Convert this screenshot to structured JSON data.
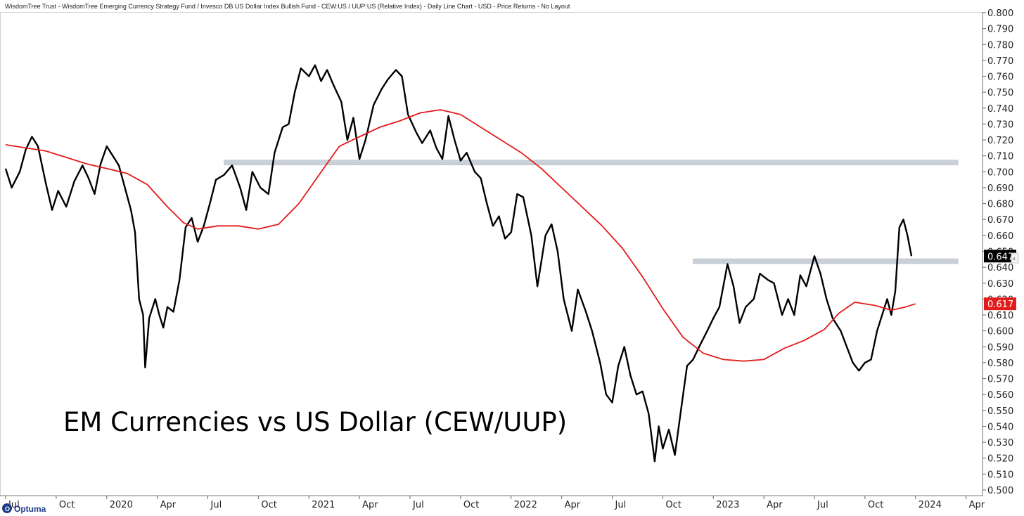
{
  "header": {
    "title": "WisdomTree Trust - WisdomTree Emerging Currency Strategy Fund / Invesco DB US Dollar Index Bullish Fund - CEW:US / UUP:US (Relative Index) - Daily Line Chart - USD - Price Returns - No Layout"
  },
  "annotation": "EM Currencies vs US Dollar (CEW/UUP)",
  "logo_text": "Optuma",
  "colors": {
    "price": "#000000",
    "moving_average": "#e31b1b",
    "zone": "#c9d0d8",
    "price_tag": "#000000",
    "ma_tag": "#e31b1b"
  },
  "chart_data": {
    "type": "line",
    "x_unit": "year (decimal)",
    "xlim": [
      2019.5,
      2024.3
    ],
    "ylim": [
      0.5,
      0.8
    ],
    "grid": false,
    "yticks": [
      "0.800",
      "0.790",
      "0.780",
      "0.770",
      "0.760",
      "0.750",
      "0.740",
      "0.730",
      "0.720",
      "0.710",
      "0.700",
      "0.690",
      "0.680",
      "0.670",
      "0.660",
      "0.650",
      "0.640",
      "0.630",
      "0.620",
      "0.610",
      "0.600",
      "0.590",
      "0.580",
      "0.570",
      "0.560",
      "0.550",
      "0.540",
      "0.530",
      "0.520",
      "0.510",
      "0.500"
    ],
    "xticks": [
      {
        "label": "Jul",
        "x": 2019.5
      },
      {
        "label": "Oct",
        "x": 2019.75
      },
      {
        "label": "2020",
        "x": 2020.0
      },
      {
        "label": "Apr",
        "x": 2020.25
      },
      {
        "label": "Jul",
        "x": 2020.5
      },
      {
        "label": "Oct",
        "x": 2020.75
      },
      {
        "label": "2021",
        "x": 2021.0
      },
      {
        "label": "Apr",
        "x": 2021.25
      },
      {
        "label": "Jul",
        "x": 2021.5
      },
      {
        "label": "Oct",
        "x": 2021.75
      },
      {
        "label": "2022",
        "x": 2022.0
      },
      {
        "label": "Apr",
        "x": 2022.25
      },
      {
        "label": "Jul",
        "x": 2022.5
      },
      {
        "label": "Oct",
        "x": 2022.75
      },
      {
        "label": "2023",
        "x": 2023.0
      },
      {
        "label": "Apr",
        "x": 2023.25
      },
      {
        "label": "Jul",
        "x": 2023.5
      },
      {
        "label": "Oct",
        "x": 2023.75
      },
      {
        "label": "2024",
        "x": 2024.0
      },
      {
        "label": "Apr",
        "x": 2024.25
      }
    ],
    "series": [
      {
        "role": "price",
        "points": [
          [
            2019.5,
            0.702
          ],
          [
            2019.53,
            0.69
          ],
          [
            2019.57,
            0.7
          ],
          [
            2019.6,
            0.714
          ],
          [
            2019.63,
            0.722
          ],
          [
            2019.66,
            0.716
          ],
          [
            2019.7,
            0.692
          ],
          [
            2019.73,
            0.676
          ],
          [
            2019.76,
            0.688
          ],
          [
            2019.8,
            0.678
          ],
          [
            2019.84,
            0.694
          ],
          [
            2019.88,
            0.704
          ],
          [
            2019.91,
            0.696
          ],
          [
            2019.94,
            0.686
          ],
          [
            2019.97,
            0.705
          ],
          [
            2020.0,
            0.716
          ],
          [
            2020.03,
            0.71
          ],
          [
            2020.06,
            0.704
          ],
          [
            2020.09,
            0.69
          ],
          [
            2020.12,
            0.676
          ],
          [
            2020.14,
            0.662
          ],
          [
            2020.16,
            0.62
          ],
          [
            2020.18,
            0.61
          ],
          [
            2020.19,
            0.577
          ],
          [
            2020.21,
            0.608
          ],
          [
            2020.24,
            0.62
          ],
          [
            2020.26,
            0.61
          ],
          [
            2020.28,
            0.602
          ],
          [
            2020.3,
            0.615
          ],
          [
            2020.33,
            0.612
          ],
          [
            2020.36,
            0.632
          ],
          [
            2020.39,
            0.665
          ],
          [
            2020.42,
            0.671
          ],
          [
            2020.45,
            0.656
          ],
          [
            2020.48,
            0.666
          ],
          [
            2020.51,
            0.68
          ],
          [
            2020.54,
            0.695
          ],
          [
            2020.58,
            0.698
          ],
          [
            2020.62,
            0.704
          ],
          [
            2020.66,
            0.69
          ],
          [
            2020.69,
            0.676
          ],
          [
            2020.72,
            0.7
          ],
          [
            2020.76,
            0.69
          ],
          [
            2020.8,
            0.686
          ],
          [
            2020.83,
            0.712
          ],
          [
            2020.87,
            0.728
          ],
          [
            2020.9,
            0.73
          ],
          [
            2020.93,
            0.75
          ],
          [
            2020.96,
            0.765
          ],
          [
            2021.0,
            0.76
          ],
          [
            2021.03,
            0.767
          ],
          [
            2021.06,
            0.757
          ],
          [
            2021.09,
            0.764
          ],
          [
            2021.12,
            0.755
          ],
          [
            2021.16,
            0.744
          ],
          [
            2021.19,
            0.72
          ],
          [
            2021.22,
            0.734
          ],
          [
            2021.25,
            0.708
          ],
          [
            2021.28,
            0.72
          ],
          [
            2021.32,
            0.742
          ],
          [
            2021.36,
            0.752
          ],
          [
            2021.39,
            0.758
          ],
          [
            2021.43,
            0.764
          ],
          [
            2021.46,
            0.76
          ],
          [
            2021.49,
            0.736
          ],
          [
            2021.53,
            0.725
          ],
          [
            2021.56,
            0.718
          ],
          [
            2021.6,
            0.726
          ],
          [
            2021.63,
            0.715
          ],
          [
            2021.66,
            0.708
          ],
          [
            2021.69,
            0.735
          ],
          [
            2021.72,
            0.72
          ],
          [
            2021.75,
            0.707
          ],
          [
            2021.78,
            0.712
          ],
          [
            2021.82,
            0.7
          ],
          [
            2021.85,
            0.696
          ],
          [
            2021.88,
            0.68
          ],
          [
            2021.91,
            0.666
          ],
          [
            2021.94,
            0.672
          ],
          [
            2021.97,
            0.658
          ],
          [
            2022.0,
            0.662
          ],
          [
            2022.03,
            0.686
          ],
          [
            2022.06,
            0.684
          ],
          [
            2022.1,
            0.66
          ],
          [
            2022.13,
            0.628
          ],
          [
            2022.17,
            0.66
          ],
          [
            2022.2,
            0.667
          ],
          [
            2022.23,
            0.65
          ],
          [
            2022.26,
            0.62
          ],
          [
            2022.3,
            0.6
          ],
          [
            2022.33,
            0.626
          ],
          [
            2022.37,
            0.612
          ],
          [
            2022.4,
            0.6
          ],
          [
            2022.44,
            0.58
          ],
          [
            2022.47,
            0.56
          ],
          [
            2022.5,
            0.555
          ],
          [
            2022.53,
            0.578
          ],
          [
            2022.56,
            0.59
          ],
          [
            2022.59,
            0.572
          ],
          [
            2022.62,
            0.56
          ],
          [
            2022.65,
            0.562
          ],
          [
            2022.68,
            0.548
          ],
          [
            2022.71,
            0.518
          ],
          [
            2022.73,
            0.54
          ],
          [
            2022.75,
            0.526
          ],
          [
            2022.78,
            0.538
          ],
          [
            2022.81,
            0.522
          ],
          [
            2022.84,
            0.55
          ],
          [
            2022.87,
            0.578
          ],
          [
            2022.9,
            0.582
          ],
          [
            2022.93,
            0.59
          ],
          [
            2022.97,
            0.6
          ],
          [
            2023.0,
            0.608
          ],
          [
            2023.03,
            0.615
          ],
          [
            2023.07,
            0.642
          ],
          [
            2023.1,
            0.628
          ],
          [
            2023.13,
            0.605
          ],
          [
            2023.16,
            0.615
          ],
          [
            2023.2,
            0.62
          ],
          [
            2023.23,
            0.636
          ],
          [
            2023.27,
            0.632
          ],
          [
            2023.3,
            0.63
          ],
          [
            2023.34,
            0.61
          ],
          [
            2023.37,
            0.62
          ],
          [
            2023.4,
            0.61
          ],
          [
            2023.43,
            0.635
          ],
          [
            2023.46,
            0.628
          ],
          [
            2023.5,
            0.647
          ],
          [
            2023.53,
            0.636
          ],
          [
            2023.56,
            0.62
          ],
          [
            2023.59,
            0.608
          ],
          [
            2023.63,
            0.6
          ],
          [
            2023.66,
            0.59
          ],
          [
            2023.69,
            0.58
          ],
          [
            2023.72,
            0.575
          ],
          [
            2023.75,
            0.58
          ],
          [
            2023.78,
            0.582
          ],
          [
            2023.81,
            0.6
          ],
          [
            2023.84,
            0.612
          ],
          [
            2023.86,
            0.62
          ],
          [
            2023.88,
            0.61
          ],
          [
            2023.9,
            0.625
          ],
          [
            2023.92,
            0.665
          ],
          [
            2023.94,
            0.67
          ],
          [
            2023.96,
            0.66
          ],
          [
            2023.98,
            0.647
          ]
        ]
      },
      {
        "role": "moving_average",
        "points": [
          [
            2019.5,
            0.717
          ],
          [
            2019.7,
            0.713
          ],
          [
            2019.9,
            0.705
          ],
          [
            2020.0,
            0.702
          ],
          [
            2020.1,
            0.699
          ],
          [
            2020.2,
            0.692
          ],
          [
            2020.3,
            0.678
          ],
          [
            2020.38,
            0.668
          ],
          [
            2020.45,
            0.664
          ],
          [
            2020.55,
            0.666
          ],
          [
            2020.65,
            0.666
          ],
          [
            2020.75,
            0.664
          ],
          [
            2020.85,
            0.667
          ],
          [
            2020.95,
            0.68
          ],
          [
            2021.05,
            0.698
          ],
          [
            2021.15,
            0.716
          ],
          [
            2021.25,
            0.722
          ],
          [
            2021.35,
            0.728
          ],
          [
            2021.45,
            0.732
          ],
          [
            2021.55,
            0.737
          ],
          [
            2021.65,
            0.739
          ],
          [
            2021.75,
            0.736
          ],
          [
            2021.85,
            0.728
          ],
          [
            2021.95,
            0.72
          ],
          [
            2022.05,
            0.712
          ],
          [
            2022.15,
            0.702
          ],
          [
            2022.25,
            0.69
          ],
          [
            2022.35,
            0.678
          ],
          [
            2022.45,
            0.666
          ],
          [
            2022.55,
            0.652
          ],
          [
            2022.65,
            0.634
          ],
          [
            2022.75,
            0.614
          ],
          [
            2022.85,
            0.596
          ],
          [
            2022.95,
            0.586
          ],
          [
            2023.05,
            0.582
          ],
          [
            2023.15,
            0.581
          ],
          [
            2023.25,
            0.582
          ],
          [
            2023.35,
            0.589
          ],
          [
            2023.45,
            0.594
          ],
          [
            2023.55,
            0.601
          ],
          [
            2023.62,
            0.611
          ],
          [
            2023.7,
            0.618
          ],
          [
            2023.8,
            0.616
          ],
          [
            2023.88,
            0.613
          ],
          [
            2023.95,
            0.615
          ],
          [
            2024.0,
            0.617
          ]
        ]
      }
    ],
    "zones": [
      {
        "x_start": 2020.58,
        "x_end": 2024.21,
        "y": 0.706
      },
      {
        "x_start": 2022.9,
        "x_end": 2024.21,
        "y": 0.644
      }
    ],
    "last_values": [
      {
        "role": "price",
        "label": "0.647",
        "value": 0.647
      },
      {
        "role": "moving_average",
        "label": "0.617",
        "value": 0.617
      }
    ]
  }
}
